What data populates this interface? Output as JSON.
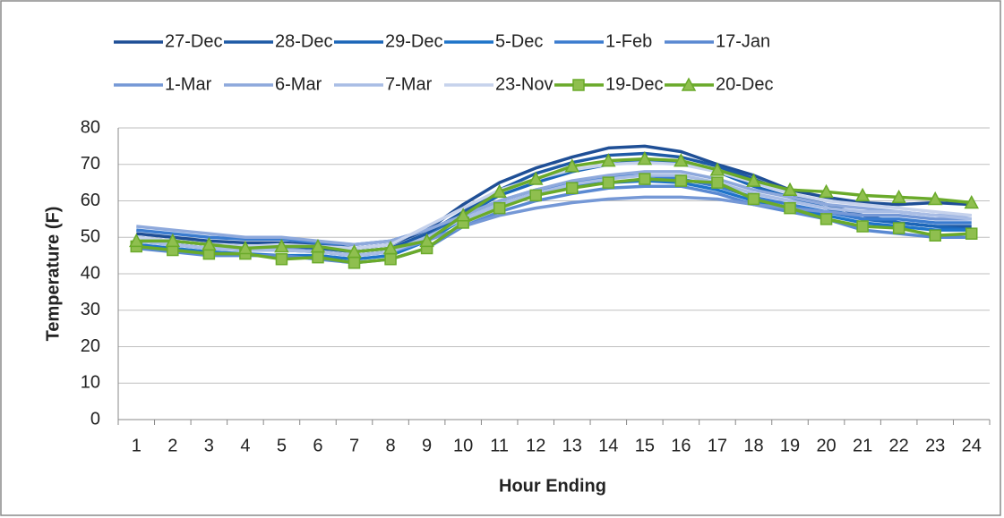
{
  "chart_data": {
    "type": "line",
    "y_axis_label": "Temperature (F)",
    "x_axis_label": "Hour Ending",
    "categories": [
      "1",
      "2",
      "3",
      "4",
      "5",
      "6",
      "7",
      "8",
      "9",
      "10",
      "11",
      "12",
      "13",
      "14",
      "15",
      "16",
      "17",
      "18",
      "19",
      "20",
      "21",
      "22",
      "23",
      "24"
    ],
    "ylim": [
      0,
      80
    ],
    "yticks": [
      0,
      10,
      20,
      30,
      40,
      50,
      60,
      70,
      80
    ],
    "grid": true,
    "legend": "top",
    "series": [
      {
        "name": "27-Dec",
        "color": "#1f4f96",
        "values": [
          51,
          50,
          49,
          48.5,
          48.5,
          48,
          47,
          48,
          52,
          59,
          65,
          69,
          72,
          74.5,
          75,
          73.5,
          70,
          67,
          63,
          61,
          59.5,
          59,
          59.5,
          59
        ]
      },
      {
        "name": "28-Dec",
        "color": "#1e5aa6",
        "values": [
          50,
          49,
          48,
          47.5,
          47.5,
          47,
          46,
          47,
          51,
          57,
          63,
          67.5,
          70.5,
          72.5,
          73,
          72,
          69.5,
          66,
          62,
          59,
          56,
          54,
          53,
          53
        ]
      },
      {
        "name": "29-Dec",
        "color": "#1c66b8",
        "values": [
          49,
          48,
          47,
          46.5,
          46.5,
          46,
          45,
          46,
          50,
          56,
          61.5,
          65,
          68,
          70,
          71,
          70.5,
          68,
          64,
          61,
          58,
          55,
          54,
          53,
          52
        ]
      },
      {
        "name": "5-Dec",
        "color": "#1f74c9",
        "values": [
          48,
          47,
          46,
          45.5,
          45,
          45,
          44,
          45,
          49,
          55,
          59,
          62,
          64,
          65,
          65.5,
          65,
          63,
          60,
          58,
          56,
          54,
          53,
          52,
          52
        ]
      },
      {
        "name": "1-Feb",
        "color": "#3b7ccf",
        "values": [
          52,
          51,
          50,
          49.5,
          49.5,
          48.5,
          48,
          49,
          52,
          56,
          60,
          63,
          65,
          66.5,
          67,
          66,
          64,
          61,
          59,
          57,
          55,
          55,
          54,
          54
        ]
      },
      {
        "name": "17-Jan",
        "color": "#5a89d2",
        "values": [
          47,
          46,
          45,
          45,
          45,
          44,
          43,
          44,
          47,
          53,
          57,
          60,
          62,
          63.5,
          64,
          64,
          62,
          59,
          57,
          55,
          52,
          51,
          50,
          50
        ]
      },
      {
        "name": "1-Mar",
        "color": "#7598d6",
        "values": [
          50,
          49,
          48,
          47,
          47,
          46,
          45,
          46,
          49,
          53,
          56,
          58,
          59.5,
          60.5,
          61,
          61,
          60.5,
          59,
          58,
          57,
          56,
          56,
          55,
          55
        ]
      },
      {
        "name": "6-Mar",
        "color": "#8ea9dc",
        "values": [
          53,
          52,
          51,
          50,
          50,
          49,
          48,
          49,
          52,
          56,
          60,
          63,
          65.5,
          67,
          68,
          68,
          66,
          63,
          61,
          59,
          58,
          57,
          56,
          56
        ]
      },
      {
        "name": "7-Mar",
        "color": "#a9bde5",
        "values": [
          49,
          48,
          47,
          46.5,
          46.5,
          46,
          45,
          46,
          50,
          55,
          59,
          62,
          64.5,
          66,
          67,
          67,
          65,
          62,
          60,
          58,
          57,
          57,
          56,
          55
        ]
      },
      {
        "name": "23-Nov",
        "color": "#c6d2ec",
        "values": [
          50,
          49,
          48,
          47.5,
          48,
          47.5,
          47,
          48,
          53,
          58,
          63,
          66,
          68.5,
          70,
          70.5,
          70,
          68,
          65,
          62,
          60,
          59,
          58,
          57,
          56
        ]
      },
      {
        "name": "19-Dec",
        "color": "#6aaa2a",
        "marker": "square",
        "values": [
          47.5,
          46.5,
          45.5,
          45.5,
          44,
          44.5,
          43,
          44,
          47,
          54,
          58,
          61.5,
          63.5,
          65,
          66,
          65.5,
          65,
          60.5,
          58,
          55,
          53,
          52.5,
          50.5,
          51
        ]
      },
      {
        "name": "20-Dec",
        "color": "#6aaa2a",
        "marker": "triangle",
        "values": [
          49,
          49,
          48,
          47,
          47.5,
          47.5,
          46,
          47,
          49,
          56,
          62.5,
          66,
          69.5,
          71,
          71.5,
          71,
          68.5,
          65.5,
          63,
          62.5,
          61.5,
          61,
          60.5,
          59.5
        ]
      }
    ]
  }
}
